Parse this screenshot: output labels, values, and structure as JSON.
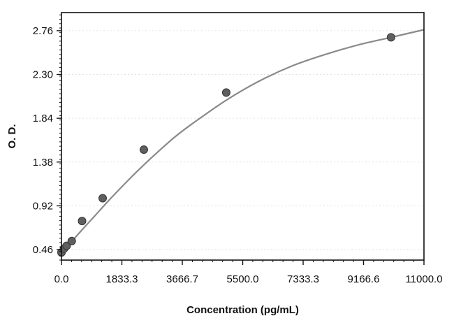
{
  "chart_data": {
    "type": "scatter",
    "title": "",
    "xlabel": "Concentration (pg/mL)",
    "ylabel": "O. D.",
    "xlim": [
      0,
      11000
    ],
    "ylim": [
      0.35,
      2.95
    ],
    "x_ticks": [
      "0.0",
      "1833.3",
      "3666.7",
      "5500.0",
      "7333.3",
      "9166.6",
      "11000.0"
    ],
    "x_tick_values": [
      0,
      1833.3,
      3666.7,
      5500,
      7333.3,
      9166.6,
      11000
    ],
    "y_ticks": [
      "0.46",
      "0.92",
      "1.38",
      "1.84",
      "2.30",
      "2.76"
    ],
    "y_tick_values": [
      0.46,
      0.92,
      1.38,
      1.84,
      2.3,
      2.76
    ],
    "grid": true,
    "legend": "none",
    "series": [
      {
        "kind": "points",
        "x": [
          0,
          78,
          156,
          312,
          625,
          1250,
          2500,
          5000,
          10000
        ],
        "y": [
          0.43,
          0.47,
          0.5,
          0.55,
          0.76,
          1.0,
          1.51,
          2.11,
          2.69
        ]
      },
      {
        "kind": "fit-curve",
        "x": [
          0,
          250,
          500,
          1000,
          1500,
          2000,
          2500,
          3000,
          3500,
          4000,
          5000,
          6000,
          7000,
          8000,
          9000,
          10000,
          11000
        ],
        "y": [
          0.43,
          0.52,
          0.62,
          0.81,
          1.0,
          1.18,
          1.35,
          1.51,
          1.66,
          1.79,
          2.03,
          2.23,
          2.39,
          2.51,
          2.61,
          2.69,
          2.77
        ]
      }
    ],
    "colors": {
      "curve": "#8a8a8a",
      "point": "#5f5f5f",
      "axis": "#111111",
      "grid": "#e2e2e2"
    }
  }
}
